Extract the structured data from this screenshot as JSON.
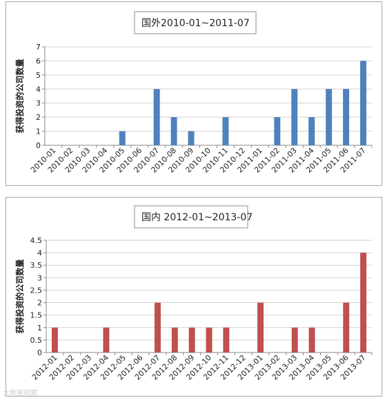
{
  "chart_data": [
    {
      "type": "bar",
      "title": "国外2010-01~2011-07",
      "ylabel": "获得投资的公司数量",
      "xlabel": "",
      "ylim": [
        0,
        7
      ],
      "yticks": [
        0,
        1,
        2,
        3,
        4,
        5,
        6,
        7
      ],
      "ytick_labels": [
        "0",
        "1",
        "2",
        "3",
        "4",
        "5",
        "6",
        "7"
      ],
      "grid": true,
      "bar_color": "#4f81bd",
      "categories": [
        "2010-01",
        "2010-02",
        "2010-03",
        "2010-04",
        "2010-05",
        "2010-06",
        "2010-07",
        "2010-08",
        "2010-09",
        "2010-10",
        "2010-11",
        "2010-12",
        "2011-01",
        "2011-02",
        "2011-03",
        "2011-04",
        "2011-05",
        "2011-06",
        "2011-07"
      ],
      "values": [
        0,
        0,
        0,
        0,
        1,
        0,
        4,
        2,
        1,
        0,
        2,
        0,
        0,
        2,
        4,
        2,
        4,
        4,
        6
      ]
    },
    {
      "type": "bar",
      "title": "国内 2012-01~2013-07",
      "ylabel": "获得投资的公司数量",
      "xlabel": "",
      "ylim": [
        0,
        4.5
      ],
      "yticks": [
        0,
        0.5,
        1,
        1.5,
        2,
        2.5,
        3,
        3.5,
        4,
        4.5
      ],
      "ytick_labels": [
        "0",
        "0.5",
        "1",
        "1.5",
        "2",
        "2.5",
        "3",
        "3.5",
        "4",
        "4.5"
      ],
      "grid": true,
      "bar_color": "#c0504d",
      "categories": [
        "2012-01",
        "2012-02",
        "2012-03",
        "2012-04",
        "2012-05",
        "2012-06",
        "2012-07",
        "2012-08",
        "2012-09",
        "2012-10",
        "2012-11",
        "2012-12",
        "2013-01",
        "2013-02",
        "2013-03",
        "2013-04",
        "2013-05",
        "2013-06",
        "2013-07"
      ],
      "values": [
        1,
        0,
        0,
        1,
        0,
        0,
        2,
        1,
        1,
        1,
        1,
        0,
        2,
        0,
        1,
        1,
        0,
        2,
        4
      ]
    }
  ],
  "watermark": "大数据观察"
}
